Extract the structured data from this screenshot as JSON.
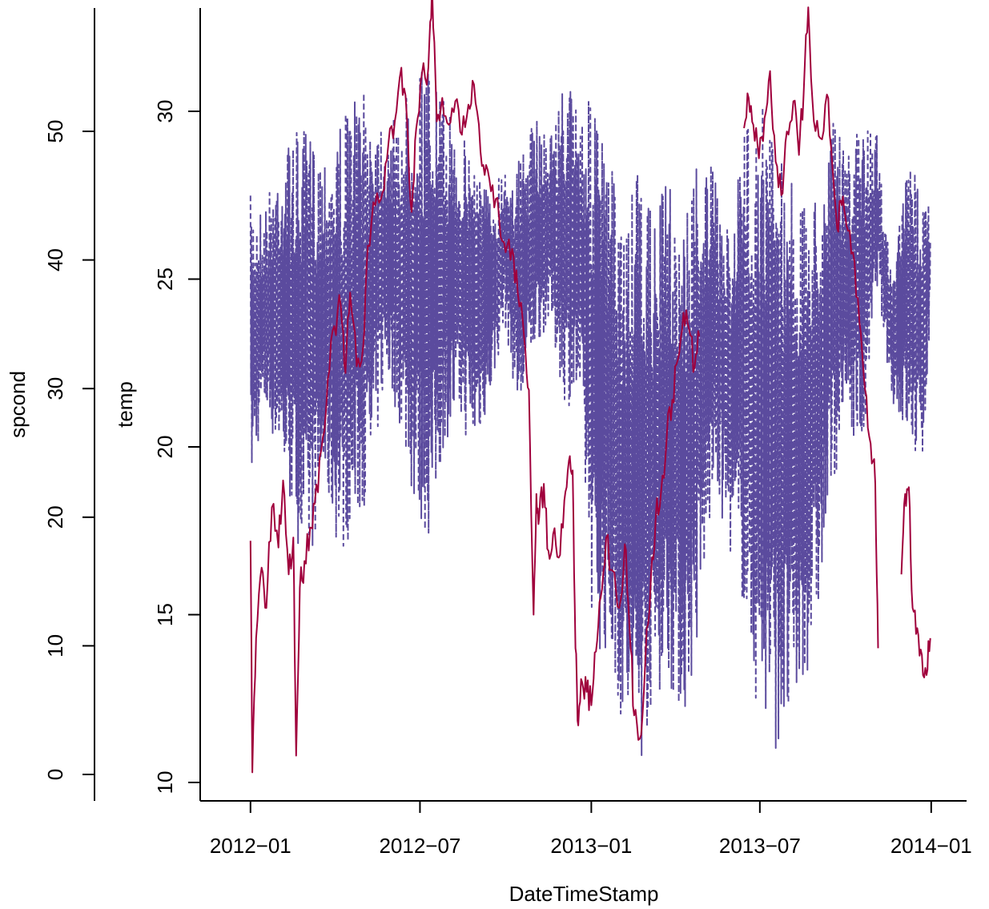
{
  "chart_data": {
    "type": "line",
    "title": "",
    "xlabel": "DateTimeStamp",
    "x_ticks": [
      "2012−01",
      "2012−07",
      "2013−01",
      "2013−07",
      "2014−01"
    ],
    "xlim": [
      "2011-11-08",
      "2014-02-08"
    ],
    "temp_axis": {
      "label": "temp",
      "ticks": [
        "10",
        "15",
        "20",
        "25",
        "30"
      ],
      "range": [
        10,
        32.5
      ]
    },
    "spcond_axis": {
      "label": "spcond",
      "ticks": [
        "0",
        "10",
        "20",
        "30",
        "40",
        "50"
      ],
      "range": [
        0,
        55
      ]
    },
    "series": [
      {
        "name": "",
        "axis": "temp",
        "color": "#a0003c",
        "style": "solid",
        "points": [
          [
            "2012-01-01",
            17.2
          ],
          [
            "2012-01-03",
            10.3
          ],
          [
            "2012-01-07",
            14.3
          ],
          [
            "2012-01-13",
            16.4
          ],
          [
            "2012-01-18",
            15.2
          ],
          [
            "2012-01-24",
            18.2
          ],
          [
            "2012-01-31",
            17.0
          ],
          [
            "2012-02-05",
            19.0
          ],
          [
            "2012-02-11",
            16.2
          ],
          [
            "2012-02-16",
            17.3
          ],
          [
            "2012-02-19",
            10.8
          ],
          [
            "2012-02-23",
            15.8
          ],
          [
            "2012-02-28",
            16.6
          ],
          [
            "2012-03-05",
            17.6
          ],
          [
            "2012-03-10",
            18.3
          ],
          [
            "2012-03-17",
            19.9
          ],
          [
            "2012-03-24",
            22.0
          ],
          [
            "2012-03-31",
            23.6
          ],
          [
            "2012-04-07",
            24.2
          ],
          [
            "2012-04-12",
            22.2
          ],
          [
            "2012-04-17",
            24.6
          ],
          [
            "2012-04-24",
            22.4
          ],
          [
            "2012-05-01",
            23.0
          ],
          [
            "2012-05-06",
            26.0
          ],
          [
            "2012-05-14",
            27.2
          ],
          [
            "2012-05-22",
            27.6
          ],
          [
            "2012-05-28",
            29.0
          ],
          [
            "2012-06-04",
            29.7
          ],
          [
            "2012-06-11",
            31.3
          ],
          [
            "2012-06-17",
            29.8
          ],
          [
            "2012-06-22",
            27.0
          ],
          [
            "2012-06-27",
            29.5
          ],
          [
            "2012-07-03",
            31.1
          ],
          [
            "2012-07-10",
            31.3
          ],
          [
            "2012-07-14",
            33.8
          ],
          [
            "2012-07-19",
            29.7
          ],
          [
            "2012-07-25",
            30.4
          ],
          [
            "2012-08-01",
            29.6
          ],
          [
            "2012-08-08",
            30.3
          ],
          [
            "2012-08-15",
            29.3
          ],
          [
            "2012-08-22",
            30.2
          ],
          [
            "2012-08-28",
            30.8
          ],
          [
            "2012-09-04",
            28.8
          ],
          [
            "2012-09-10",
            28.4
          ],
          [
            "2012-09-17",
            27.8
          ],
          [
            "2012-09-24",
            26.8
          ],
          [
            "2012-10-01",
            25.8
          ],
          [
            "2012-10-08",
            25.9
          ],
          [
            "2012-10-14",
            24.6
          ],
          [
            "2012-10-21",
            23.2
          ],
          [
            "2012-10-26",
            21.7
          ],
          [
            "2012-10-31",
            15.0
          ],
          [
            "2012-11-03",
            18.6
          ],
          [
            "2012-11-06",
            17.9
          ],
          [
            "2012-11-11",
            18.9
          ],
          [
            "2012-11-16",
            16.9
          ],
          [
            "2012-11-21",
            17.4
          ],
          [
            "2012-11-27",
            16.7
          ],
          [
            "2012-12-03",
            18.4
          ],
          [
            "2012-12-08",
            19.6
          ],
          [
            "2012-12-12",
            19.3
          ],
          [
            "2012-12-15",
            14.0
          ],
          [
            "2012-12-18",
            11.7
          ],
          [
            "2012-12-22",
            13.0
          ],
          [
            "2012-12-27",
            12.7
          ],
          [
            "2013-01-01",
            12.3
          ],
          [
            "2013-01-06",
            13.9
          ],
          [
            "2013-01-11",
            15.5
          ],
          [
            "2013-01-17",
            17.3
          ],
          [
            "2013-01-24",
            16.3
          ],
          [
            "2013-01-31",
            15.2
          ],
          [
            "2013-02-06",
            17.1
          ],
          [
            "2013-02-11",
            14.6
          ],
          [
            "2013-02-16",
            12.0
          ],
          [
            "2013-02-22",
            11.3
          ],
          [
            "2013-02-28",
            13.6
          ],
          [
            "2013-03-06",
            16.1
          ],
          [
            "2013-03-11",
            17.8
          ],
          [
            "2013-03-17",
            18.7
          ],
          [
            "2013-03-23",
            20.3
          ],
          [
            "2013-03-29",
            21.4
          ],
          [
            "2013-04-04",
            22.6
          ],
          [
            "2013-04-10",
            24.0
          ],
          [
            "2013-04-16",
            23.5
          ],
          [
            "2013-04-22",
            22.4
          ],
          [
            "2013-04-27",
            23.3
          ],
          [
            "2013-06-14",
            29.5
          ],
          [
            "2013-06-19",
            30.4
          ],
          [
            "2013-06-24",
            29.6
          ],
          [
            "2013-06-30",
            28.6
          ],
          [
            "2013-07-06",
            29.8
          ],
          [
            "2013-07-12",
            31.2
          ],
          [
            "2013-07-18",
            28.5
          ],
          [
            "2013-07-24",
            27.5
          ],
          [
            "2013-07-30",
            29.4
          ],
          [
            "2013-08-06",
            30.3
          ],
          [
            "2013-08-12",
            28.7
          ],
          [
            "2013-08-17",
            30.5
          ],
          [
            "2013-08-22",
            33.1
          ],
          [
            "2013-08-28",
            29.7
          ],
          [
            "2013-09-04",
            29.2
          ],
          [
            "2013-09-11",
            30.5
          ],
          [
            "2013-09-17",
            28.3
          ],
          [
            "2013-09-22",
            26.5
          ],
          [
            "2013-09-27",
            27.2
          ],
          [
            "2013-10-02",
            26.6
          ],
          [
            "2013-10-09",
            25.8
          ],
          [
            "2013-10-16",
            23.7
          ],
          [
            "2013-10-22",
            21.7
          ],
          [
            "2013-10-28",
            20.1
          ],
          [
            "2013-11-02",
            18.9
          ],
          [
            "2013-11-05",
            14.0
          ],
          [
            "2013-11-30",
            16.2
          ],
          [
            "2013-12-04",
            18.6
          ],
          [
            "2013-12-08",
            18.8
          ],
          [
            "2013-12-12",
            15.2
          ],
          [
            "2013-12-17",
            14.6
          ],
          [
            "2013-12-22",
            13.8
          ],
          [
            "2013-12-27",
            13.2
          ],
          [
            "2013-12-31",
            14.3
          ]
        ]
      },
      {
        "name": "",
        "axis": "spcond",
        "color": "#5b4b9e",
        "style": "dashed",
        "envelope": [
          [
            "2012-01-01",
            22,
            45
          ],
          [
            "2012-01-15",
            28,
            44
          ],
          [
            "2012-01-31",
            25,
            48
          ],
          [
            "2012-02-15",
            20,
            50
          ],
          [
            "2012-03-01",
            15,
            50
          ],
          [
            "2012-03-20",
            22,
            49
          ],
          [
            "2012-04-06",
            17,
            51
          ],
          [
            "2012-04-22",
            19,
            53
          ],
          [
            "2012-05-09",
            22,
            53
          ],
          [
            "2012-05-25",
            31,
            51
          ],
          [
            "2012-06-10",
            27,
            51
          ],
          [
            "2012-06-26",
            20,
            56
          ],
          [
            "2012-07-12",
            18,
            55
          ],
          [
            "2012-07-28",
            26,
            52
          ],
          [
            "2012-08-13",
            27,
            50
          ],
          [
            "2012-08-29",
            25,
            49
          ],
          [
            "2012-09-14",
            29,
            45
          ],
          [
            "2012-09-30",
            35,
            48
          ],
          [
            "2012-10-16",
            27,
            48
          ],
          [
            "2012-11-01",
            33,
            51
          ],
          [
            "2012-11-17",
            35,
            50
          ],
          [
            "2012-12-03",
            29,
            54
          ],
          [
            "2012-12-19",
            28,
            53
          ],
          [
            "2013-01-04",
            10,
            52
          ],
          [
            "2013-01-20",
            9,
            48
          ],
          [
            "2013-02-05",
            3,
            43
          ],
          [
            "2013-02-21",
            0,
            47
          ],
          [
            "2013-03-09",
            6,
            43
          ],
          [
            "2013-03-25",
            7,
            47
          ],
          [
            "2013-04-10",
            4,
            43
          ],
          [
            "2013-04-26",
            10,
            49
          ],
          [
            "2013-05-12",
            22,
            47
          ],
          [
            "2013-05-28",
            18,
            42
          ],
          [
            "2013-06-13",
            13,
            50
          ],
          [
            "2013-06-29",
            4,
            53
          ],
          [
            "2013-07-15",
            2,
            51
          ],
          [
            "2013-07-31",
            2,
            48
          ],
          [
            "2013-08-16",
            6,
            44
          ],
          [
            "2013-09-01",
            12,
            46
          ],
          [
            "2013-09-17",
            22,
            51
          ],
          [
            "2013-10-03",
            28,
            48
          ],
          [
            "2013-10-19",
            24,
            51
          ],
          [
            "2013-11-04",
            38,
            50
          ],
          [
            "2013-11-20",
            29,
            38
          ],
          [
            "2013-12-06",
            26,
            48
          ],
          [
            "2013-12-22",
            23,
            46
          ],
          [
            "2013-12-31",
            35,
            45
          ]
        ]
      }
    ]
  }
}
